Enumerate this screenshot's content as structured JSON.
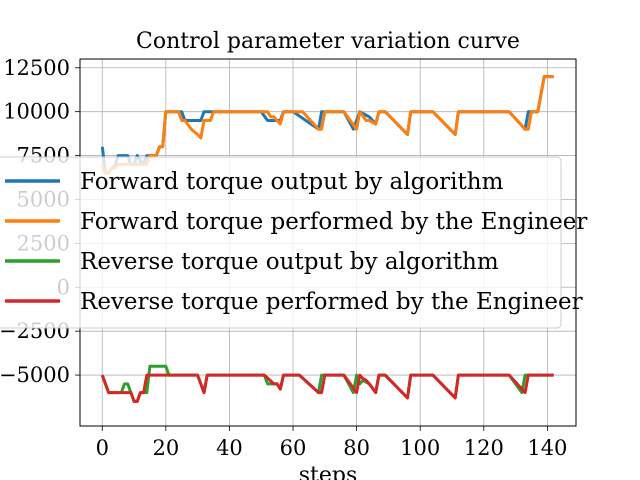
{
  "chart_data": {
    "type": "line",
    "title": "Control parameter variation curve",
    "xlabel": "steps",
    "ylabel": "",
    "xlim": [
      -7,
      149
    ],
    "ylim": [
      -7900,
      13000
    ],
    "xticks": [
      0,
      20,
      40,
      60,
      80,
      100,
      120,
      140
    ],
    "yticks": [
      -5000,
      -2500,
      0,
      2500,
      5000,
      7500,
      10000,
      12500
    ],
    "ytick_labels": [
      "−5000",
      "−2500",
      "0",
      "2500",
      "5000",
      "7500",
      "10000",
      "12500"
    ],
    "grid": true,
    "legend_position": "center-left",
    "series": [
      {
        "name": "Forward torque output by algorithm",
        "color": "#1f77b4",
        "points": [
          [
            0,
            8000
          ],
          [
            1,
            6500
          ],
          [
            2,
            6500
          ],
          [
            3,
            6800
          ],
          [
            4,
            6900
          ],
          [
            5,
            7500
          ],
          [
            6,
            7500
          ],
          [
            7,
            7500
          ],
          [
            8,
            7500
          ],
          [
            9,
            7000
          ],
          [
            10,
            7000
          ],
          [
            11,
            7500
          ],
          [
            12,
            7200
          ],
          [
            13,
            7000
          ],
          [
            14,
            7500
          ],
          [
            15,
            7500
          ],
          [
            16,
            7500
          ],
          [
            17,
            7500
          ],
          [
            18,
            8000
          ],
          [
            19,
            8000
          ],
          [
            20,
            10000
          ],
          [
            21,
            10000
          ],
          [
            22,
            10000
          ],
          [
            23,
            10000
          ],
          [
            24,
            10000
          ],
          [
            25,
            10000
          ],
          [
            26,
            9500
          ],
          [
            27,
            9500
          ],
          [
            28,
            9500
          ],
          [
            29,
            9500
          ],
          [
            31,
            9500
          ],
          [
            32,
            10000
          ],
          [
            33,
            10000
          ],
          [
            34,
            10000
          ],
          [
            35,
            10000
          ],
          [
            36,
            10000
          ],
          [
            37,
            10000
          ],
          [
            38,
            10000
          ],
          [
            40,
            10000
          ],
          [
            45,
            10000
          ],
          [
            50,
            10000
          ],
          [
            52,
            9500
          ],
          [
            54,
            9500
          ],
          [
            56,
            9500
          ],
          [
            57,
            10000
          ],
          [
            58,
            10000
          ],
          [
            60,
            10000
          ],
          [
            68,
            9000
          ],
          [
            69,
            10000
          ],
          [
            72,
            10000
          ],
          [
            76,
            10000
          ],
          [
            79,
            9000
          ],
          [
            81,
            10000
          ],
          [
            83,
            9800
          ],
          [
            84,
            9700
          ],
          [
            86,
            9300
          ],
          [
            87,
            10000
          ],
          [
            89,
            10000
          ],
          [
            96,
            8700
          ],
          [
            97,
            10000
          ],
          [
            102,
            10000
          ],
          [
            104,
            10000
          ],
          [
            111,
            8700
          ],
          [
            112,
            10000
          ],
          [
            120,
            10000
          ],
          [
            128,
            10000
          ],
          [
            133,
            9000
          ],
          [
            134,
            10000
          ],
          [
            136,
            10000
          ],
          [
            137,
            10000
          ],
          [
            139,
            12000
          ],
          [
            142,
            12000
          ]
        ]
      },
      {
        "name": "Forward torque performed by the Engineer",
        "color": "#ff7f0e",
        "points": [
          [
            0,
            7000
          ],
          [
            1,
            6500
          ],
          [
            2,
            6500
          ],
          [
            3,
            6800
          ],
          [
            4,
            6800
          ],
          [
            5,
            7000
          ],
          [
            6,
            7000
          ],
          [
            7,
            7000
          ],
          [
            8,
            7000
          ],
          [
            9,
            7000
          ],
          [
            10,
            7000
          ],
          [
            11,
            7000
          ],
          [
            12,
            7000
          ],
          [
            13,
            7000
          ],
          [
            14,
            7000
          ],
          [
            15,
            7500
          ],
          [
            16,
            7500
          ],
          [
            17,
            7500
          ],
          [
            18,
            8000
          ],
          [
            19,
            8000
          ],
          [
            20,
            10000
          ],
          [
            21,
            10000
          ],
          [
            22,
            10000
          ],
          [
            23,
            10000
          ],
          [
            24,
            10000
          ],
          [
            25,
            9500
          ],
          [
            26,
            9500
          ],
          [
            28,
            9000
          ],
          [
            30,
            8700
          ],
          [
            31,
            8500
          ],
          [
            32,
            9500
          ],
          [
            33,
            9500
          ],
          [
            34,
            9500
          ],
          [
            35,
            10000
          ],
          [
            40,
            10000
          ],
          [
            45,
            10000
          ],
          [
            50,
            10000
          ],
          [
            51,
            10000
          ],
          [
            52,
            10000
          ],
          [
            53,
            9700
          ],
          [
            54,
            9700
          ],
          [
            56,
            9300
          ],
          [
            57,
            10000
          ],
          [
            60,
            10000
          ],
          [
            63,
            10000
          ],
          [
            68,
            9000
          ],
          [
            69,
            9000
          ],
          [
            70,
            10000
          ],
          [
            76,
            10000
          ],
          [
            80,
            9000
          ],
          [
            81,
            10000
          ],
          [
            83,
            9500
          ],
          [
            84,
            9500
          ],
          [
            86,
            9300
          ],
          [
            87,
            10000
          ],
          [
            88,
            10000
          ],
          [
            89,
            10000
          ],
          [
            96,
            8700
          ],
          [
            97,
            10000
          ],
          [
            102,
            10000
          ],
          [
            104,
            10000
          ],
          [
            111,
            8700
          ],
          [
            112,
            10000
          ],
          [
            120,
            10000
          ],
          [
            128,
            10000
          ],
          [
            133,
            9000
          ],
          [
            134,
            9000
          ],
          [
            135,
            10000
          ],
          [
            137,
            10000
          ],
          [
            139,
            12000
          ],
          [
            142,
            12000
          ]
        ]
      },
      {
        "name": "Reverse torque output by algorithm",
        "color": "#2ca02c",
        "points": [
          [
            0,
            -5000
          ],
          [
            2,
            -6000
          ],
          [
            3,
            -6000
          ],
          [
            4,
            -6000
          ],
          [
            6,
            -6000
          ],
          [
            7,
            -5500
          ],
          [
            8,
            -5500
          ],
          [
            9,
            -6000
          ],
          [
            10,
            -6500
          ],
          [
            11,
            -6500
          ],
          [
            12,
            -6000
          ],
          [
            13,
            -6000
          ],
          [
            14,
            -6000
          ],
          [
            15,
            -4500
          ],
          [
            16,
            -4500
          ],
          [
            18,
            -4500
          ],
          [
            19,
            -4500
          ],
          [
            20,
            -4500
          ],
          [
            21,
            -5000
          ],
          [
            25,
            -5000
          ],
          [
            30,
            -5000
          ],
          [
            31,
            -5500
          ],
          [
            32,
            -6000
          ],
          [
            33,
            -5000
          ],
          [
            35,
            -5000
          ],
          [
            40,
            -5000
          ],
          [
            45,
            -5000
          ],
          [
            50,
            -5000
          ],
          [
            51,
            -5000
          ],
          [
            52,
            -5500
          ],
          [
            53,
            -5500
          ],
          [
            54,
            -5500
          ],
          [
            55,
            -5500
          ],
          [
            56,
            -5800
          ],
          [
            57,
            -5000
          ],
          [
            60,
            -5000
          ],
          [
            62,
            -5000
          ],
          [
            68,
            -6000
          ],
          [
            69,
            -5000
          ],
          [
            72,
            -5000
          ],
          [
            76,
            -5000
          ],
          [
            79,
            -6000
          ],
          [
            80,
            -5000
          ],
          [
            81,
            -5500
          ],
          [
            82,
            -5300
          ],
          [
            84,
            -5500
          ],
          [
            86,
            -6000
          ],
          [
            87,
            -5000
          ],
          [
            88,
            -5000
          ],
          [
            89,
            -5000
          ],
          [
            96,
            -6300
          ],
          [
            97,
            -5000
          ],
          [
            98,
            -5000
          ],
          [
            104,
            -5000
          ],
          [
            111,
            -6300
          ],
          [
            112,
            -5000
          ],
          [
            118,
            -5000
          ],
          [
            128,
            -5000
          ],
          [
            132,
            -6000
          ],
          [
            133,
            -5000
          ],
          [
            134,
            -5000
          ],
          [
            137,
            -5000
          ],
          [
            142,
            -5000
          ]
        ]
      },
      {
        "name": "Reverse torque performed by the Engineer",
        "color": "#d62728",
        "points": [
          [
            0,
            -5000
          ],
          [
            2,
            -6000
          ],
          [
            3,
            -6000
          ],
          [
            4,
            -6000
          ],
          [
            6,
            -6000
          ],
          [
            7,
            -6000
          ],
          [
            8,
            -6000
          ],
          [
            9,
            -6000
          ],
          [
            10,
            -6500
          ],
          [
            11,
            -6500
          ],
          [
            12,
            -6000
          ],
          [
            13,
            -6000
          ],
          [
            14,
            -5000
          ],
          [
            16,
            -5000
          ],
          [
            18,
            -5000
          ],
          [
            20,
            -5000
          ],
          [
            21,
            -5000
          ],
          [
            25,
            -5000
          ],
          [
            30,
            -5000
          ],
          [
            32,
            -6000
          ],
          [
            33,
            -5000
          ],
          [
            35,
            -5000
          ],
          [
            40,
            -5000
          ],
          [
            45,
            -5000
          ],
          [
            50,
            -5000
          ],
          [
            51,
            -5000
          ],
          [
            54,
            -5500
          ],
          [
            55,
            -5500
          ],
          [
            56,
            -5800
          ],
          [
            57,
            -5000
          ],
          [
            60,
            -5000
          ],
          [
            62,
            -5000
          ],
          [
            68,
            -6000
          ],
          [
            69,
            -6000
          ],
          [
            70,
            -5000
          ],
          [
            76,
            -5000
          ],
          [
            80,
            -6000
          ],
          [
            81,
            -5000
          ],
          [
            82,
            -5200
          ],
          [
            83,
            -5300
          ],
          [
            84,
            -5500
          ],
          [
            86,
            -6000
          ],
          [
            87,
            -5000
          ],
          [
            88,
            -5000
          ],
          [
            89,
            -5000
          ],
          [
            96,
            -6300
          ],
          [
            97,
            -5000
          ],
          [
            98,
            -5000
          ],
          [
            104,
            -5000
          ],
          [
            111,
            -6300
          ],
          [
            112,
            -5000
          ],
          [
            118,
            -5000
          ],
          [
            128,
            -5000
          ],
          [
            133,
            -6000
          ],
          [
            134,
            -5000
          ],
          [
            137,
            -5000
          ],
          [
            142,
            -5000
          ]
        ]
      }
    ]
  }
}
